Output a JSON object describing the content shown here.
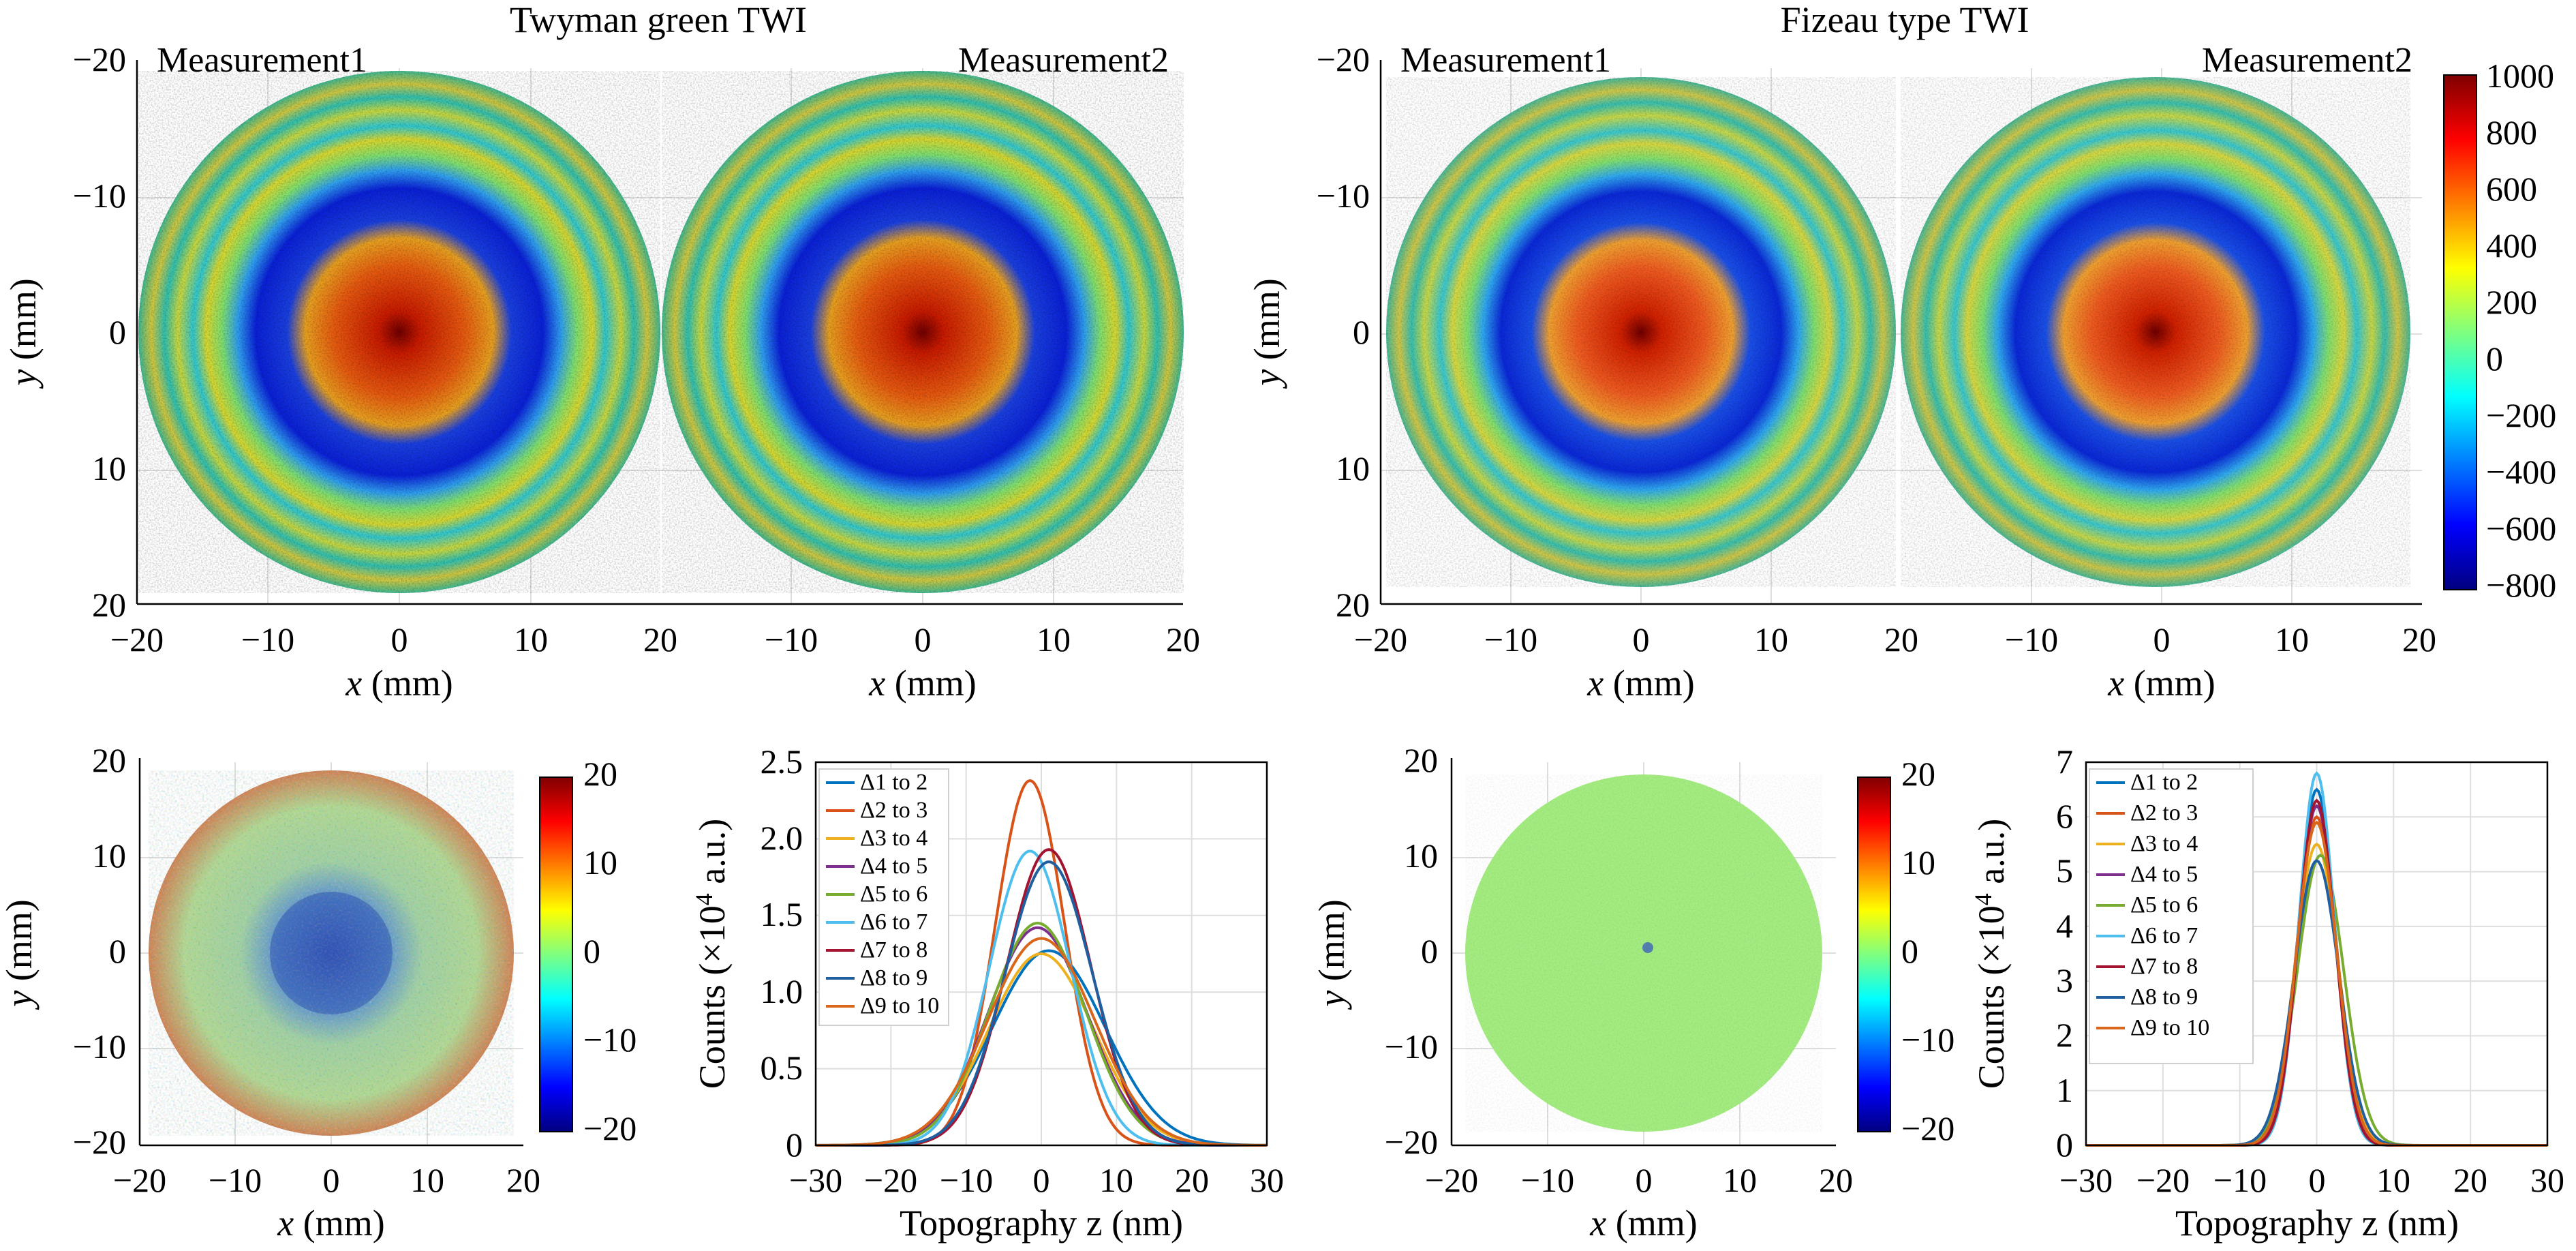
{
  "titles": {
    "left": "Twyman green TWI",
    "right": "Fizeau type TWI"
  },
  "measurement_labels": [
    "Measurement1",
    "Measurement2"
  ],
  "colors": {
    "jet": [
      "#00007f",
      "#0000ff",
      "#007fff",
      "#00ffff",
      "#7fff7f",
      "#ffff00",
      "#ff7f00",
      "#ff0000",
      "#7f0000"
    ],
    "series": [
      "#0072bd",
      "#d95319",
      "#edb120",
      "#7e2f8e",
      "#77ac30",
      "#4dbeee",
      "#a2142f",
      "#1f5fa0",
      "#d9661a"
    ]
  },
  "chart_data": [
    {
      "type": "heatmap",
      "group": "Twyman green TWI",
      "panels": [
        "Measurement1",
        "Measurement2"
      ],
      "x_ticks": [
        "−20",
        "−10",
        "0",
        "10",
        "20"
      ],
      "y_ticks": [
        "−20",
        "−10",
        "0",
        "10",
        "20"
      ],
      "xlabel_var": "x",
      "xlabel_unit": "(mm)",
      "ylabel_var": "y",
      "ylabel_unit": "(mm)",
      "xlim": [
        -20,
        20
      ],
      "ylim": [
        -20,
        20
      ],
      "aperture_radius_mm": 20,
      "ring_profile": [
        {
          "r": 0,
          "v": 1000
        },
        {
          "r": 2,
          "v": 800
        },
        {
          "r": 6,
          "v": 600
        },
        {
          "r": 8,
          "v": 200
        },
        {
          "r": 9.5,
          "v": -600
        },
        {
          "r": 12.5,
          "v": -700
        },
        {
          "r": 14,
          "v": -200
        },
        {
          "r": 15.5,
          "v": 150
        },
        {
          "r": 17,
          "v": -100
        },
        {
          "r": 18.5,
          "v": 200
        },
        {
          "r": 20,
          "v": 0
        }
      ]
    },
    {
      "type": "heatmap",
      "group": "Fizeau type TWI",
      "panels": [
        "Measurement1",
        "Measurement2"
      ],
      "x_ticks": [
        "−20",
        "−10",
        "0",
        "10",
        "20"
      ],
      "y_ticks": [
        "−20",
        "−10",
        "0",
        "10",
        "20"
      ],
      "xlabel_var": "x",
      "xlabel_unit": "(mm)",
      "ylabel_var": "y",
      "ylabel_unit": "(mm)",
      "xlim": [
        -20,
        20
      ],
      "ylim": [
        -20,
        20
      ],
      "aperture_radius_mm": 20,
      "colorbar": {
        "ticks": [
          "1000",
          "800",
          "600",
          "400",
          "200",
          "0",
          "−200",
          "−400",
          "−600",
          "−800"
        ],
        "range": [
          -800,
          1000
        ]
      }
    },
    {
      "type": "heatmap",
      "group": "Twyman green difference map",
      "x_ticks": [
        "−20",
        "−10",
        "0",
        "10",
        "20"
      ],
      "y_ticks": [
        "20",
        "10",
        "0",
        "−10",
        "−20"
      ],
      "xlabel_var": "x",
      "xlabel_unit": "(mm)",
      "ylabel_var": "y",
      "ylabel_unit": "(mm)",
      "xlim": [
        -20,
        20
      ],
      "ylim": [
        -20,
        20
      ],
      "colorbar": {
        "ticks": [
          "20",
          "10",
          "0",
          "−10",
          "−20"
        ],
        "range": [
          -20,
          20
        ]
      }
    },
    {
      "type": "line",
      "group": "Twyman green histogram",
      "x_ticks": [
        "−30",
        "−20",
        "−10",
        "0",
        "10",
        "20",
        "30"
      ],
      "y_ticks": [
        "0",
        "0.5",
        "1.0",
        "1.5",
        "2.0",
        "2.5"
      ],
      "xlim": [
        -30,
        30
      ],
      "ylim": [
        0,
        2.5
      ],
      "xlabel": "Topography z (nm)",
      "ylabel_pre": "Counts (×10",
      "ylabel_exp": "4",
      "ylabel_post": " a.u.)",
      "series": [
        {
          "name": "Δ1 to 2",
          "peak": 1.27,
          "center": 1,
          "sigma": 7.5
        },
        {
          "name": "Δ2 to 3",
          "peak": 2.38,
          "center": -1.5,
          "sigma": 4.6
        },
        {
          "name": "Δ3 to 4",
          "peak": 1.25,
          "center": 0,
          "sigma": 7.0
        },
        {
          "name": "Δ4 to 5",
          "peak": 1.42,
          "center": -0.5,
          "sigma": 6.6
        },
        {
          "name": "Δ5 to 6",
          "peak": 1.45,
          "center": -0.5,
          "sigma": 6.4
        },
        {
          "name": "Δ6 to 7",
          "peak": 1.92,
          "center": -1.5,
          "sigma": 5.4
        },
        {
          "name": "Δ7 to 8",
          "peak": 1.93,
          "center": 1,
          "sigma": 5.6
        },
        {
          "name": "Δ8 to 9",
          "peak": 1.85,
          "center": 1,
          "sigma": 5.8
        },
        {
          "name": "Δ9 to 10",
          "peak": 1.35,
          "center": 0,
          "sigma": 7.1
        }
      ]
    },
    {
      "type": "heatmap",
      "group": "Fizeau difference map",
      "x_ticks": [
        "−20",
        "−10",
        "0",
        "10",
        "20"
      ],
      "y_ticks": [
        "20",
        "10",
        "0",
        "−10",
        "−20"
      ],
      "xlabel_var": "x",
      "xlabel_unit": "(mm)",
      "ylabel_var": "y",
      "ylabel_unit": "(mm)",
      "xlim": [
        -20,
        20
      ],
      "ylim": [
        -20,
        20
      ],
      "colorbar": {
        "ticks": [
          "20",
          "10",
          "0",
          "−10",
          "−20"
        ],
        "range": [
          -20,
          20
        ]
      }
    },
    {
      "type": "line",
      "group": "Fizeau histogram",
      "x_ticks": [
        "−30",
        "−20",
        "−10",
        "0",
        "10",
        "20",
        "30"
      ],
      "y_ticks": [
        "0",
        "1",
        "2",
        "3",
        "4",
        "5",
        "6",
        "7"
      ],
      "xlim": [
        -30,
        30
      ],
      "ylim": [
        0,
        7
      ],
      "xlabel": "Topography z (nm)",
      "ylabel_pre": "Counts (×10",
      "ylabel_exp": "4",
      "ylabel_post": " a.u.)",
      "series": [
        {
          "name": "Δ1 to 2",
          "peak": 6.5,
          "center": 0,
          "sigma": 2.4
        },
        {
          "name": "Δ2 to 3",
          "peak": 6.0,
          "center": 0,
          "sigma": 2.6
        },
        {
          "name": "Δ3 to 4",
          "peak": 5.5,
          "center": 0,
          "sigma": 2.8
        },
        {
          "name": "Δ4 to 5",
          "peak": 6.2,
          "center": 0,
          "sigma": 2.5
        },
        {
          "name": "Δ5 to 6",
          "peak": 5.3,
          "center": 0.5,
          "sigma": 3.0
        },
        {
          "name": "Δ6 to 7",
          "peak": 6.8,
          "center": 0,
          "sigma": 2.3
        },
        {
          "name": "Δ7 to 8",
          "peak": 6.3,
          "center": 0,
          "sigma": 2.4
        },
        {
          "name": "Δ8 to 9",
          "peak": 5.2,
          "center": 0,
          "sigma": 2.9
        },
        {
          "name": "Δ9 to 10",
          "peak": 5.9,
          "center": 0,
          "sigma": 2.6
        }
      ]
    }
  ]
}
